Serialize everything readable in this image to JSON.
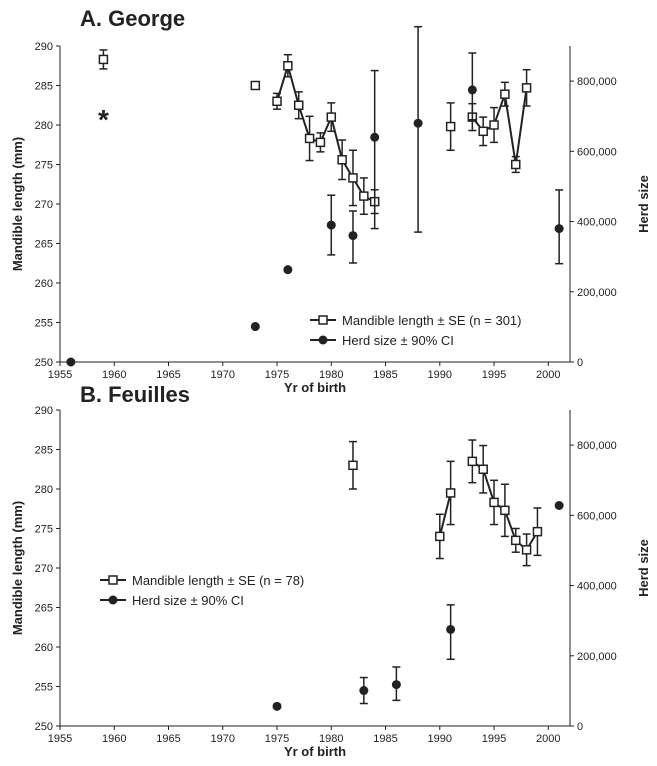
{
  "chart_data": [
    {
      "type": "scatter",
      "title": "A. George",
      "xlabel": "Yr of birth",
      "ylabel": "Mandible length (mm)",
      "y2label": "Herd size",
      "xlim": [
        1955,
        2002
      ],
      "ylim": [
        250,
        290
      ],
      "y2lim": [
        0,
        900000
      ],
      "xticks": [
        "1955",
        "1960",
        "1965",
        "1970",
        "1975",
        "1980",
        "1985",
        "1990",
        "1995",
        "2000"
      ],
      "yticks": [
        "250",
        "255",
        "260",
        "265",
        "270",
        "275",
        "280",
        "285",
        "290"
      ],
      "y2ticks": [
        "0",
        "200,000",
        "400,000",
        "600,000",
        "800,000"
      ],
      "legend_position": "bottom-right",
      "annotations": [
        {
          "text": "*",
          "x": 1959,
          "y": 281
        }
      ],
      "series": [
        {
          "name": "Mandible length ±  SE (n = 301)",
          "marker": "open-square",
          "axis": "left",
          "points": [
            {
              "x": 1959,
              "y": 288.3,
              "err": 1.2
            },
            {
              "x": 1973,
              "y": 285,
              "err": 0.3
            },
            {
              "x": 1975,
              "y": 283,
              "err": 1
            },
            {
              "x": 1976,
              "y": 287.5,
              "err": 1.4
            },
            {
              "x": 1977,
              "y": 282.5,
              "err": 1.7
            },
            {
              "x": 1978,
              "y": 278.3,
              "err": 2.8
            },
            {
              "x": 1979,
              "y": 277.8,
              "err": 1.2
            },
            {
              "x": 1980,
              "y": 281,
              "err": 1.8
            },
            {
              "x": 1981,
              "y": 275.6,
              "err": 2.5
            },
            {
              "x": 1982,
              "y": 273.3,
              "err": 3.5
            },
            {
              "x": 1983,
              "y": 271,
              "err": 2.3
            },
            {
              "x": 1984,
              "y": 270.3,
              "err": 1.5
            },
            {
              "x": 1991,
              "y": 279.8,
              "err": 3
            },
            {
              "x": 1993,
              "y": 281,
              "err": 1.7
            },
            {
              "x": 1994,
              "y": 279.2,
              "err": 1.8
            },
            {
              "x": 1995,
              "y": 280,
              "err": 2.2
            },
            {
              "x": 1996,
              "y": 283.9,
              "err": 1.5
            },
            {
              "x": 1997,
              "y": 275,
              "err": 1
            },
            {
              "x": 1998,
              "y": 284.7,
              "err": 2.3
            }
          ],
          "lines": [
            [
              1975,
              1976,
              1977,
              1978,
              1979,
              1980,
              1981,
              1982,
              1983,
              1984
            ],
            [
              1993,
              1994,
              1995,
              1996,
              1997,
              1998
            ]
          ]
        },
        {
          "name": "Herd size ± 90% CI",
          "marker": "filled-circle",
          "axis": "right",
          "points": [
            {
              "x": 1956,
              "y": 0
            },
            {
              "x": 1973,
              "y": 101000
            },
            {
              "x": 1976,
              "y": 263000
            },
            {
              "x": 1980,
              "y": 390000,
              "lo": 305000,
              "hi": 475000
            },
            {
              "x": 1982,
              "y": 360000,
              "lo": 282000,
              "hi": 430000
            },
            {
              "x": 1984,
              "y": 640000,
              "lo": 380000,
              "hi": 830000
            },
            {
              "x": 1988,
              "y": 680000,
              "lo": 370000,
              "hi": 955000
            },
            {
              "x": 1993,
              "y": 775000,
              "lo": 690000,
              "hi": 880000
            },
            {
              "x": 2001,
              "y": 380000,
              "lo": 280000,
              "hi": 490000
            }
          ]
        }
      ]
    },
    {
      "type": "scatter",
      "title": "B. Feuilles",
      "xlabel": "Yr of birth",
      "ylabel": "Mandible length (mm)",
      "y2label": "Herd size",
      "xlim": [
        1955,
        2002
      ],
      "ylim": [
        250,
        290
      ],
      "y2lim": [
        0,
        900000
      ],
      "xticks": [
        "1955",
        "1960",
        "1965",
        "1970",
        "1975",
        "1980",
        "1985",
        "1990",
        "1995",
        "2000"
      ],
      "yticks": [
        "250",
        "255",
        "260",
        "265",
        "270",
        "275",
        "280",
        "285",
        "290"
      ],
      "y2ticks": [
        "0",
        "200,000",
        "400,000",
        "600,000",
        "800,000"
      ],
      "legend_position": "center-left",
      "series": [
        {
          "name": "Mandible length ±  SE (n = 78)",
          "marker": "open-square",
          "axis": "left",
          "points": [
            {
              "x": 1982,
              "y": 283,
              "err": 3
            },
            {
              "x": 1990,
              "y": 274,
              "err": 2.8
            },
            {
              "x": 1991,
              "y": 279.5,
              "err": 4
            },
            {
              "x": 1993,
              "y": 283.5,
              "err": 2.7
            },
            {
              "x": 1994,
              "y": 282.5,
              "err": 3
            },
            {
              "x": 1995,
              "y": 278.3,
              "err": 2.8
            },
            {
              "x": 1996,
              "y": 277.3,
              "err": 3.3
            },
            {
              "x": 1997,
              "y": 273.5,
              "err": 1.5
            },
            {
              "x": 1998,
              "y": 272.3,
              "err": 2
            },
            {
              "x": 1999,
              "y": 274.6,
              "err": 3
            }
          ],
          "lines": [
            [
              1990,
              1991
            ],
            [
              1993,
              1994,
              1995,
              1996,
              1997,
              1998,
              1999
            ]
          ]
        },
        {
          "name": "Herd size ± 90% CI",
          "marker": "filled-circle",
          "axis": "right",
          "points": [
            {
              "x": 1975,
              "y": 56000
            },
            {
              "x": 1983,
              "y": 101000,
              "lo": 64000,
              "hi": 138000
            },
            {
              "x": 1986,
              "y": 118000,
              "lo": 73000,
              "hi": 168000
            },
            {
              "x": 1991,
              "y": 275000,
              "lo": 190000,
              "hi": 345000
            },
            {
              "x": 2001,
              "y": 628000
            }
          ]
        }
      ]
    }
  ]
}
